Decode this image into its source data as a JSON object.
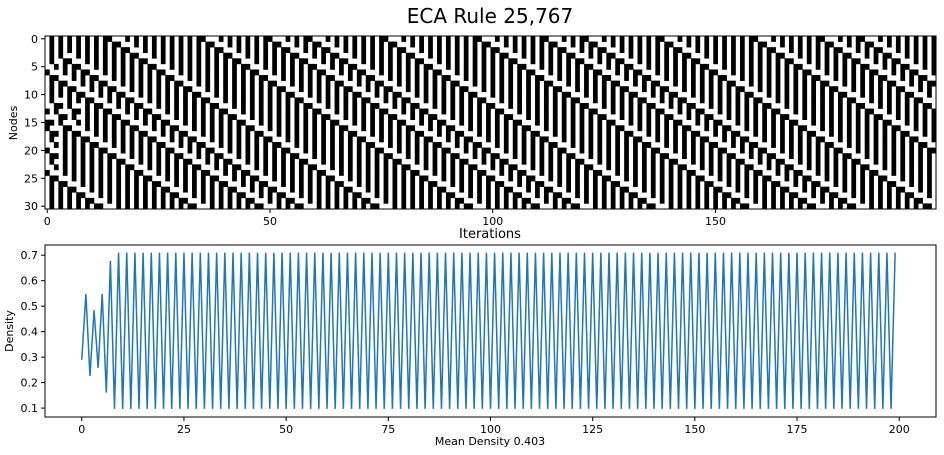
{
  "title": "ECA Rule 25,767",
  "chart_data": [
    {
      "type": "heatmap",
      "ylabel": "Nodes",
      "xlabel": "Iterations",
      "nodes": 31,
      "iterations": 200,
      "x_ticks": [
        0,
        50,
        100,
        150
      ],
      "y_ticks": [
        0,
        5,
        10,
        15,
        20,
        25,
        30
      ],
      "colors": {
        "on": "#000000",
        "off": "#ffffff"
      },
      "pattern": "cellular automaton space-time diagram; black = state 1, white = state 0"
    },
    {
      "type": "line",
      "ylabel": "Density",
      "xlabel": "Mean Density 0.403",
      "xlim": [
        -9,
        209
      ],
      "ylim": [
        0.065,
        0.74
      ],
      "x_ticks": [
        0,
        25,
        50,
        75,
        100,
        125,
        150,
        175,
        200
      ],
      "y_ticks": [
        0.1,
        0.2,
        0.3,
        0.4,
        0.5,
        0.6,
        0.7
      ],
      "line_color": "#1f77b4",
      "initial_values": [
        0.29,
        0.548,
        0.226,
        0.484,
        0.258,
        0.548,
        0.161,
        0.677
      ],
      "steady_state": {
        "from_x": 7,
        "odd_value": 0.71,
        "even_value": 0.097,
        "to_x": 199
      }
    }
  ]
}
